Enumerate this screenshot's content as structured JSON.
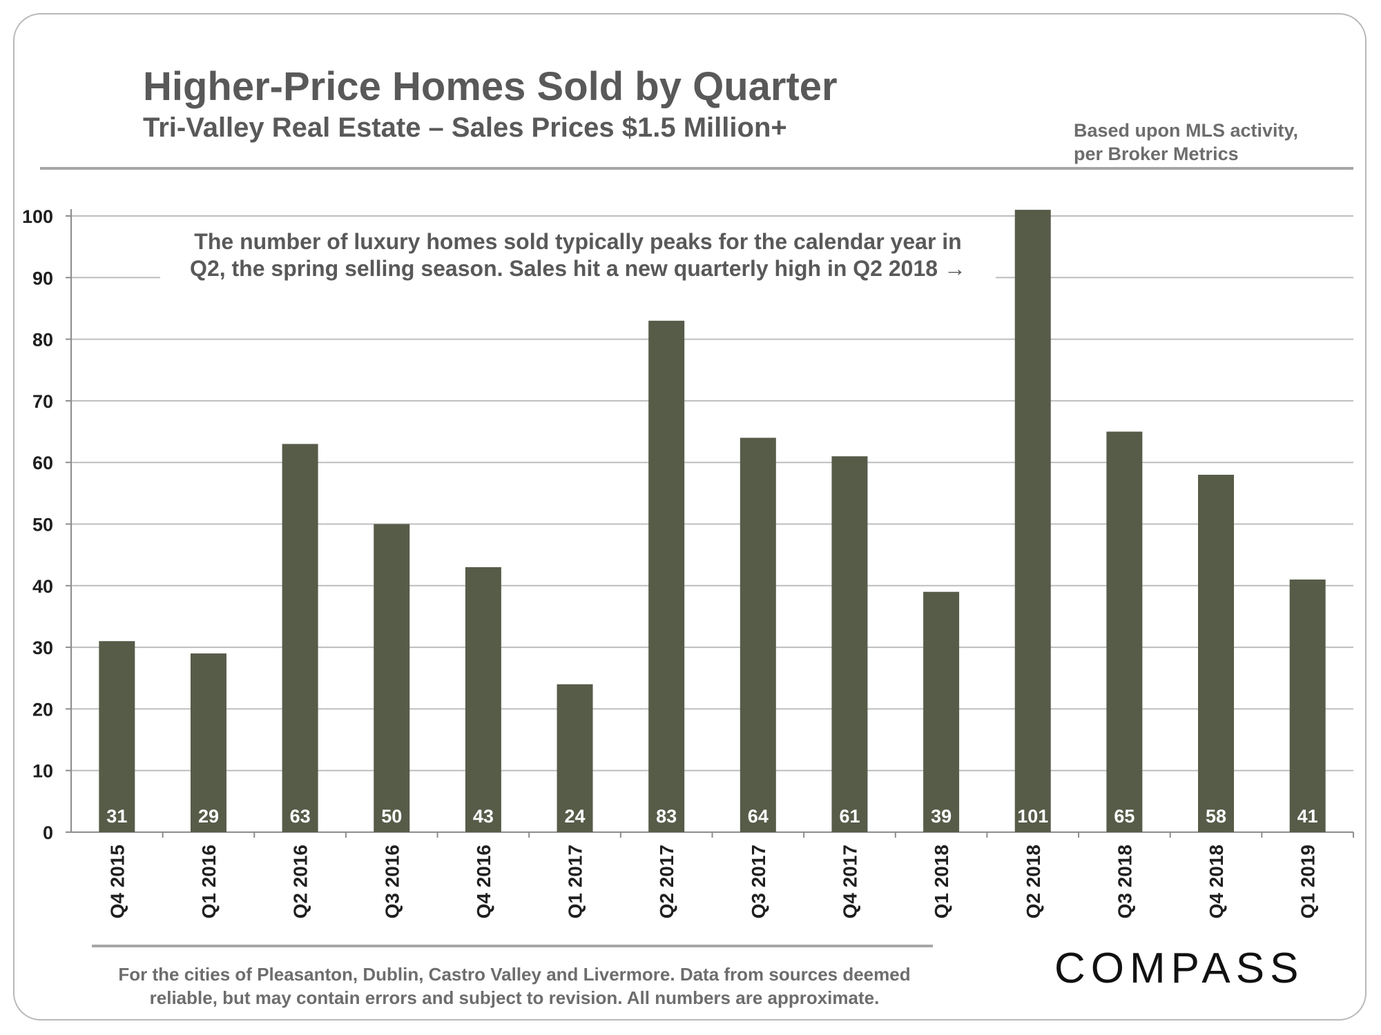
{
  "header": {
    "title": "Higher-Price Homes Sold by Quarter",
    "subtitle": "Tri-Valley  Real Estate – Sales Prices $1.5 Million+",
    "source_line1": "Based upon MLS activity,",
    "source_line2": "per Broker Metrics"
  },
  "annotation": {
    "line1": "The number of luxury homes sold typically peaks for the calendar year in",
    "line2": "Q2, the spring selling  season. Sales hit a new quarterly high in Q2 2018 →"
  },
  "footer": {
    "line1": "For the cities of Pleasanton, Dublin, Castro Valley and Livermore. Data from sources  deemed",
    "line2": "reliable, but may contain errors and subject to revision. All numbers are approximate.",
    "logo": "COMPASS"
  },
  "colors": {
    "bar": "#575c49",
    "bar_label": "#ffffff",
    "gridline": "#bdbdbd",
    "axis_text": "#1f1f1f",
    "rule": "#a6a6a6"
  },
  "chart_data": {
    "type": "bar",
    "categories": [
      "Q4 2015",
      "Q1 2016",
      "Q2 2016",
      "Q3 2016",
      "Q4 2016",
      "Q1 2017",
      "Q2 2017",
      "Q3 2017",
      "Q4 2017",
      "Q1 2018",
      "Q2 2018",
      "Q3 2018",
      "Q4 2018",
      "Q1 2019"
    ],
    "values": [
      31,
      29,
      63,
      50,
      43,
      24,
      83,
      64,
      61,
      39,
      101,
      65,
      58,
      41
    ],
    "data_labels": [
      "31",
      "29",
      "63",
      "50",
      "43",
      "24",
      "83",
      "64",
      "61",
      "39",
      "101",
      "65",
      "58",
      "41"
    ],
    "ylim": [
      0,
      100
    ],
    "yticks": [
      0,
      10,
      20,
      30,
      40,
      50,
      60,
      70,
      80,
      90,
      100
    ],
    "grid": true,
    "legend": "none",
    "xlabel": "",
    "ylabel": ""
  }
}
